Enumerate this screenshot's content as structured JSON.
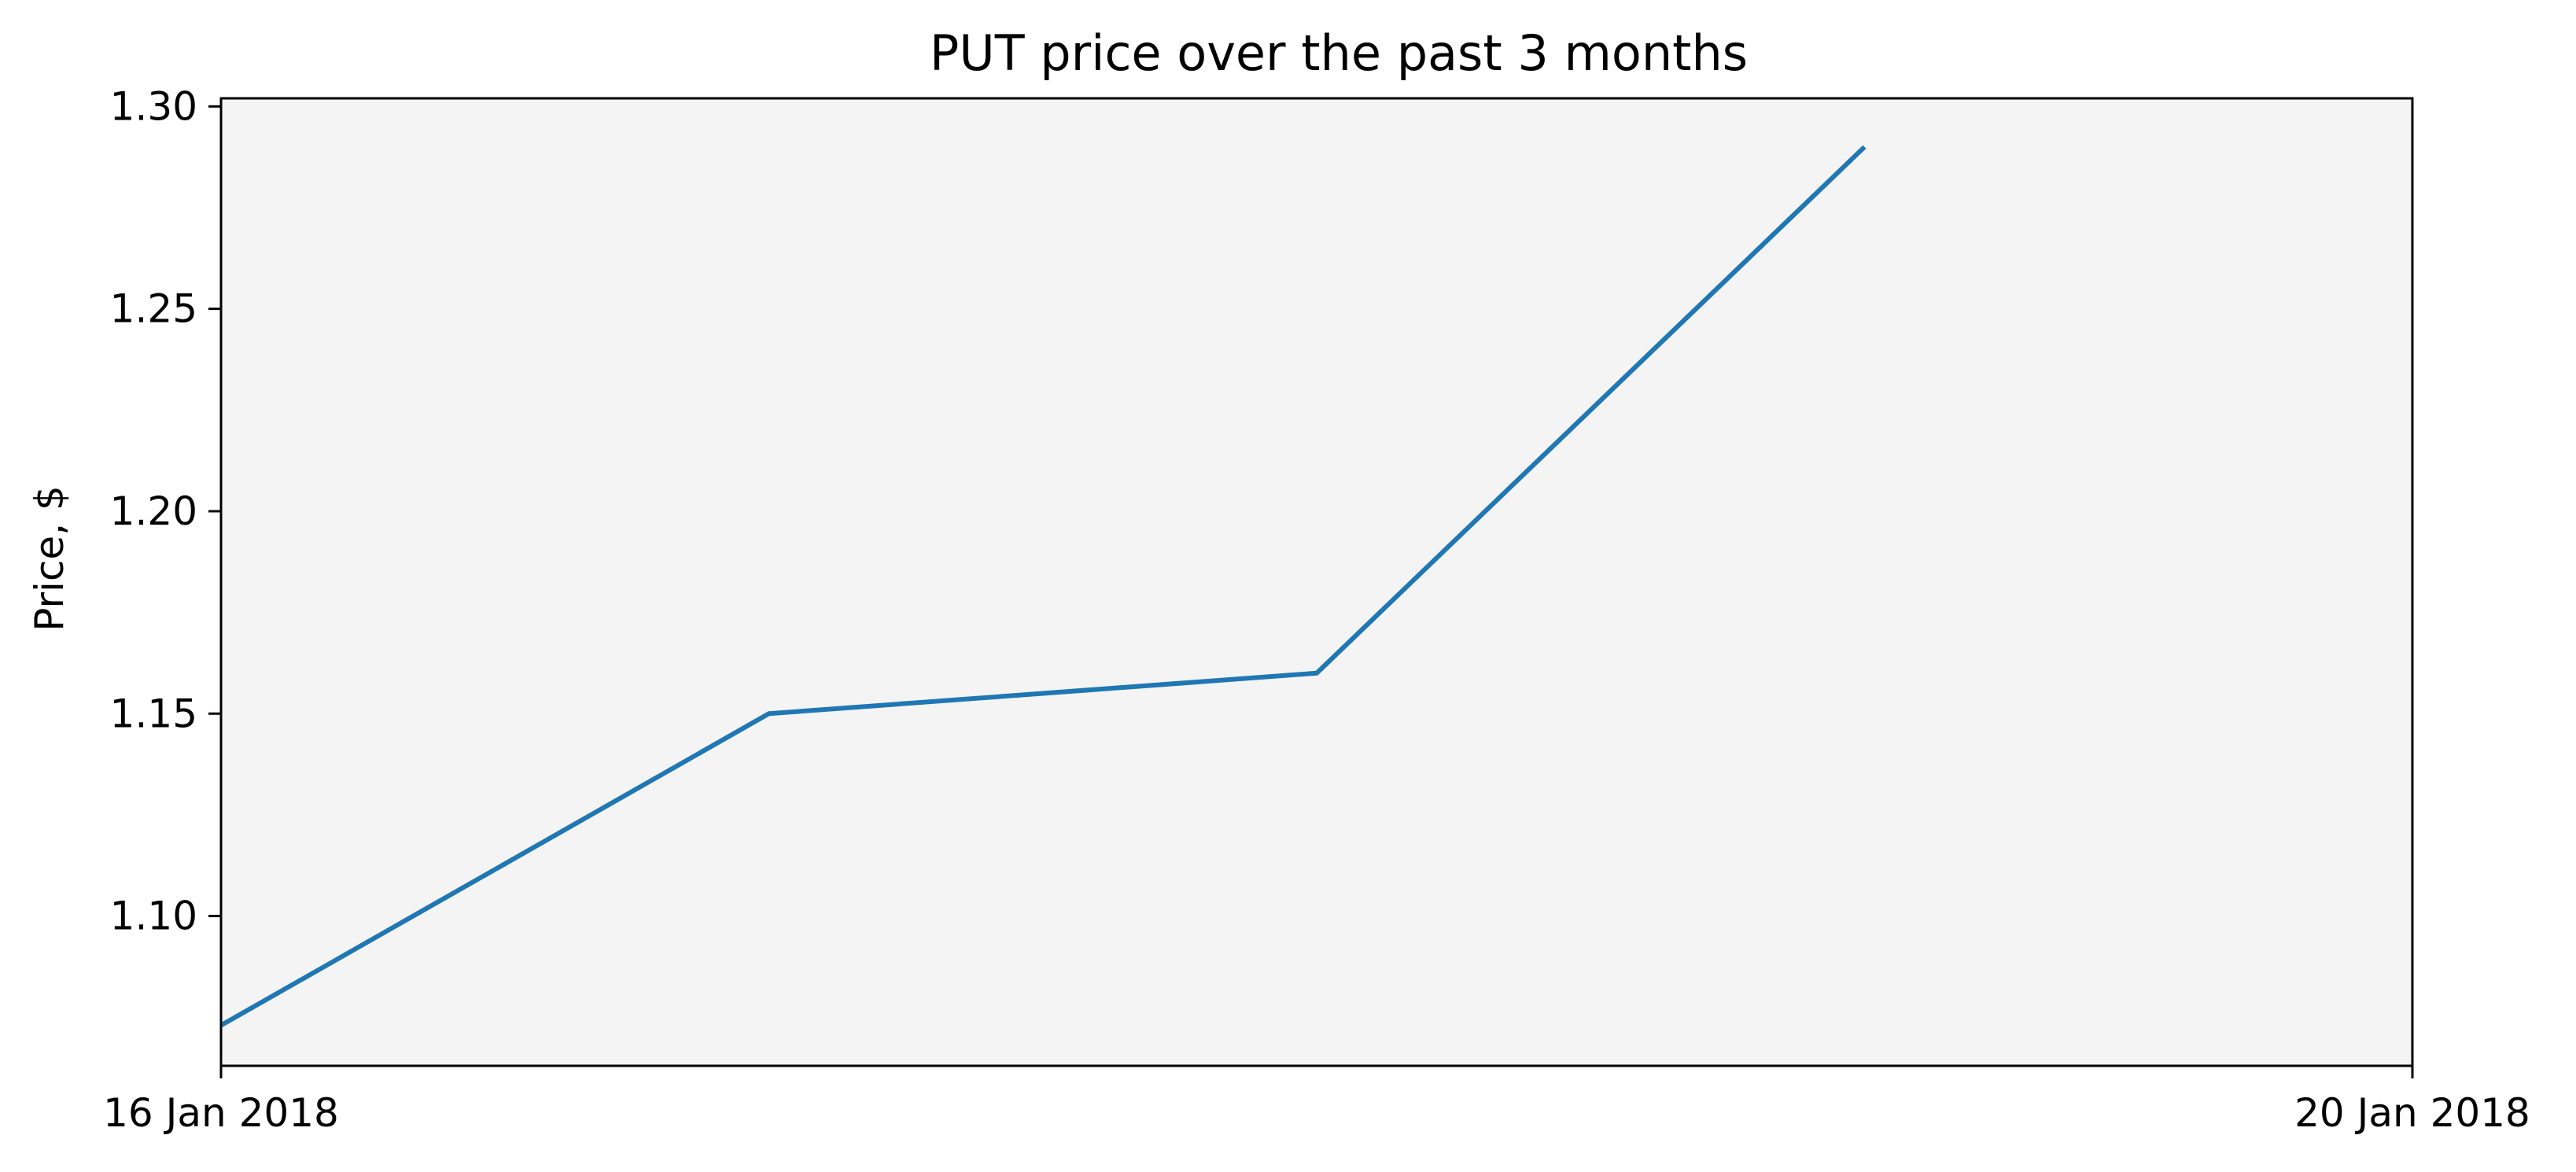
{
  "chart_data": {
    "type": "line",
    "title": "PUT price over the past 3 months",
    "xlabel": "",
    "ylabel": "Price, $",
    "x": [
      "2018-01-16",
      "2018-01-17",
      "2018-01-18",
      "2018-01-19"
    ],
    "xlim": [
      "2018-01-16",
      "2018-01-20"
    ],
    "xticks": [
      {
        "value": "2018-01-16",
        "label": "16 Jan 2018"
      },
      {
        "value": "2018-01-20",
        "label": "20 Jan 2018"
      }
    ],
    "series": [
      {
        "values": [
          1.073,
          1.15,
          1.16,
          1.29
        ],
        "color": "#1f77b4"
      }
    ],
    "ylim": [
      1.063,
      1.302
    ],
    "yticks": [
      {
        "value": 1.1,
        "label": "1.10"
      },
      {
        "value": 1.15,
        "label": "1.15"
      },
      {
        "value": 1.2,
        "label": "1.20"
      },
      {
        "value": 1.25,
        "label": "1.25"
      },
      {
        "value": 1.3,
        "label": "1.30"
      }
    ],
    "grid": false,
    "plot_background": "#f4f4f4",
    "legend": "none"
  }
}
